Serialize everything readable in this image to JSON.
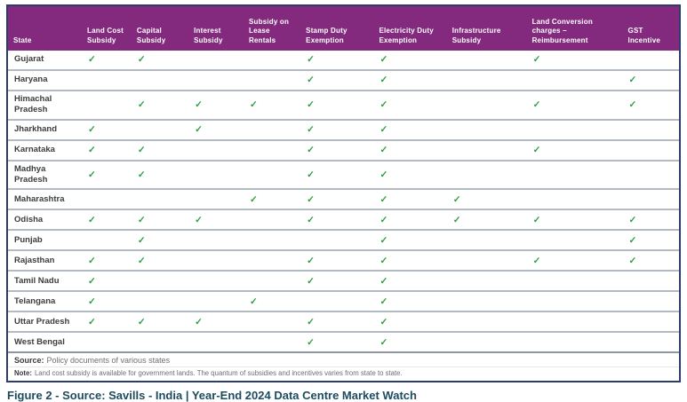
{
  "table": {
    "columns": [
      "State",
      "Land Cost Subsidy",
      "Capital Subsidy",
      "Interest Subsidy",
      "Subsidy on Lease Rentals",
      "Stamp Duty Exemption",
      "Electricity Duty Exemption",
      "Infrastructure Subsidy",
      "Land Conversion charges – Reimbursement",
      "GST Incentive"
    ],
    "check_glyph": "✓",
    "rows": [
      {
        "state": "Gujarat",
        "checks": [
          1,
          1,
          0,
          0,
          1,
          1,
          0,
          1,
          0
        ]
      },
      {
        "state": "Haryana",
        "checks": [
          0,
          0,
          0,
          0,
          1,
          1,
          0,
          0,
          1
        ]
      },
      {
        "state": "Himachal Pradesh",
        "checks": [
          0,
          1,
          1,
          1,
          1,
          1,
          0,
          1,
          1
        ]
      },
      {
        "state": "Jharkhand",
        "checks": [
          1,
          0,
          1,
          0,
          1,
          1,
          0,
          0,
          0
        ]
      },
      {
        "state": "Karnataka",
        "checks": [
          1,
          1,
          0,
          0,
          1,
          1,
          0,
          1,
          0
        ]
      },
      {
        "state": "Madhya Pradesh",
        "checks": [
          1,
          1,
          0,
          0,
          1,
          1,
          0,
          0,
          0
        ]
      },
      {
        "state": "Maharashtra",
        "checks": [
          0,
          0,
          0,
          1,
          1,
          1,
          1,
          0,
          0
        ]
      },
      {
        "state": "Odisha",
        "checks": [
          1,
          1,
          1,
          0,
          1,
          1,
          1,
          1,
          1
        ]
      },
      {
        "state": "Punjab",
        "checks": [
          0,
          1,
          0,
          0,
          0,
          1,
          0,
          0,
          1
        ]
      },
      {
        "state": "Rajasthan",
        "checks": [
          1,
          1,
          0,
          0,
          1,
          1,
          0,
          1,
          1
        ]
      },
      {
        "state": "Tamil Nadu",
        "checks": [
          1,
          0,
          0,
          0,
          1,
          1,
          0,
          0,
          0
        ]
      },
      {
        "state": "Telangana",
        "checks": [
          1,
          0,
          0,
          1,
          0,
          1,
          0,
          0,
          0
        ]
      },
      {
        "state": "Uttar Pradesh",
        "checks": [
          1,
          1,
          1,
          0,
          1,
          1,
          0,
          0,
          0
        ]
      },
      {
        "state": "West Bengal",
        "checks": [
          0,
          0,
          0,
          0,
          1,
          1,
          0,
          0,
          0
        ]
      }
    ]
  },
  "footer": {
    "source_label": "Source:",
    "source_text": "Policy documents of various states",
    "note_label": "Note:",
    "note_text": "Land cost subsidy is available for government lands. The quantum of subsidies and incentives varies from state to state."
  },
  "caption": "Figure 2 - Source: Savills - India | Year-End 2024 Data Centre Market Watch",
  "colors": {
    "header_bg": "#832a7e",
    "border": "#2c3c6b",
    "check": "#2f9e41",
    "caption": "#1d4b5f"
  }
}
